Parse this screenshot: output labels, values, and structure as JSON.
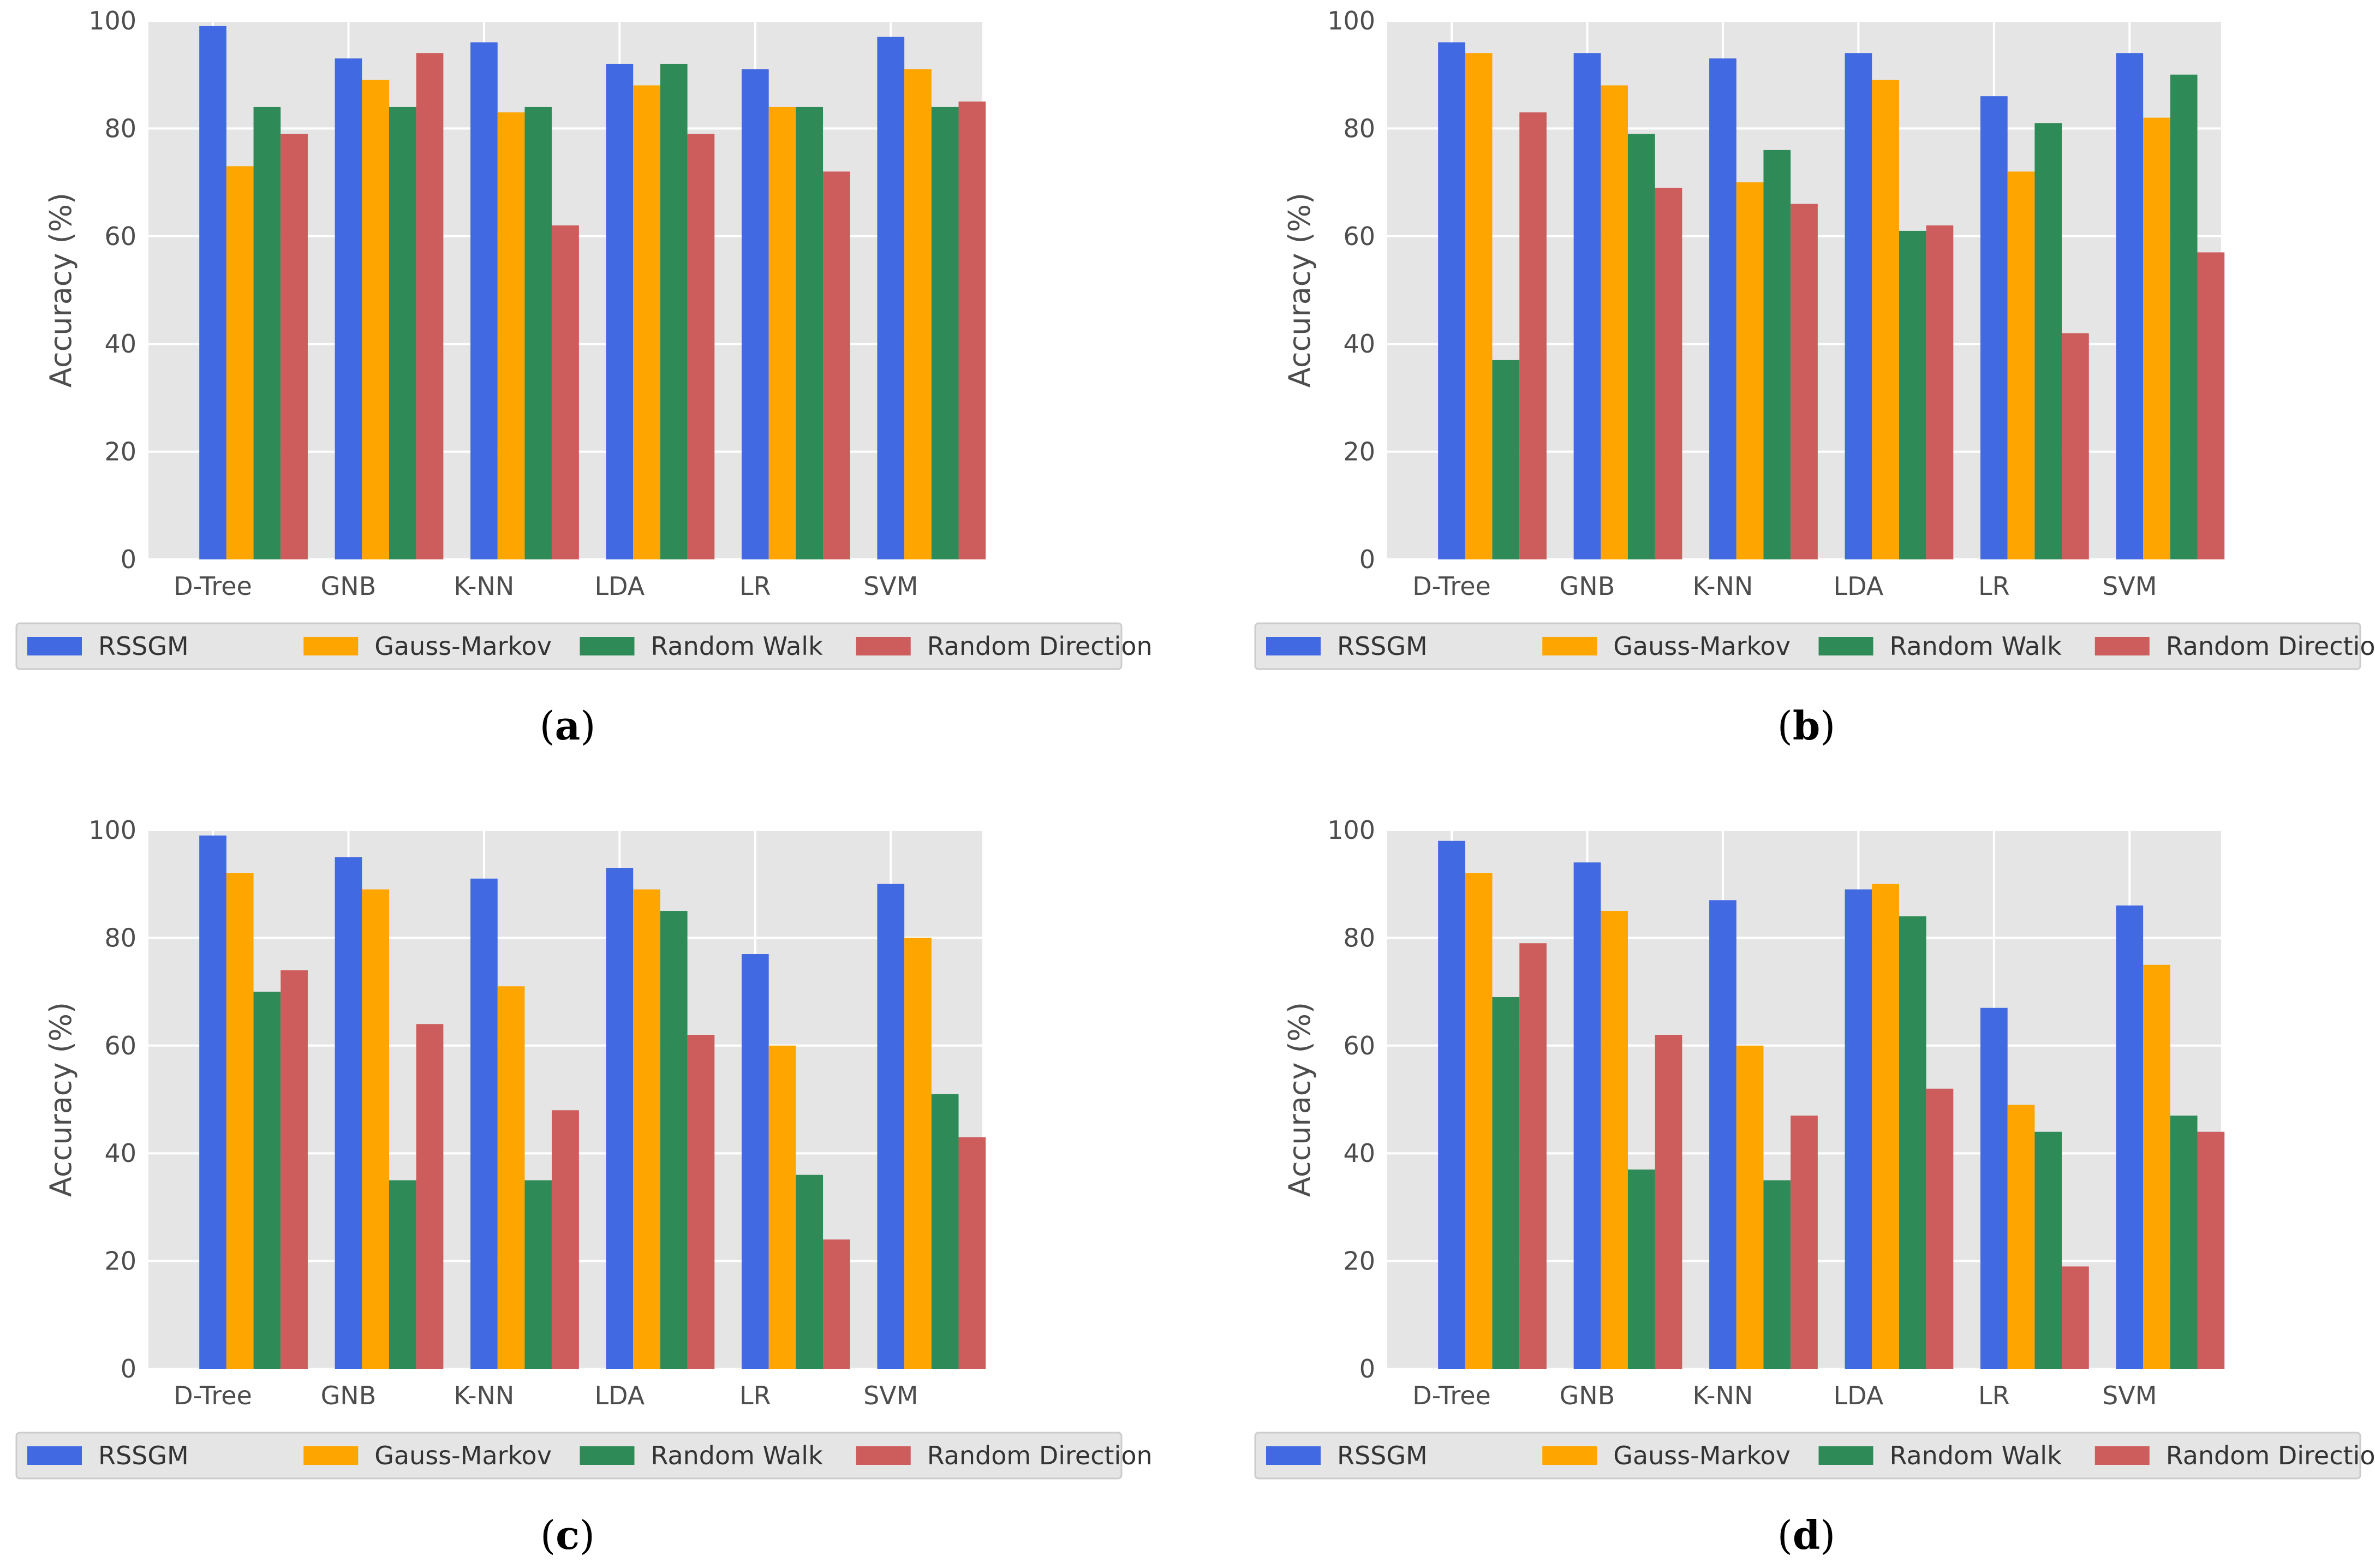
{
  "figure": {
    "y_axis_label": "Accuracy (%)",
    "colors": {
      "RSSGM": "#4169e1",
      "Gauss-Markov": "#ffa500",
      "Random Walk": "#2e8b57",
      "Random Direction": "#cd5c5c"
    }
  },
  "chart_data": [
    {
      "type": "bar",
      "caption": "a",
      "categories": [
        "D-Tree",
        "GNB",
        "K-NN",
        "LDA",
        "LR",
        "SVM"
      ],
      "series": [
        {
          "name": "RSSGM",
          "values": [
            99,
            93,
            96,
            92,
            91,
            97
          ]
        },
        {
          "name": "Gauss-Markov",
          "values": [
            73,
            89,
            83,
            88,
            84,
            91
          ]
        },
        {
          "name": "Random Walk",
          "values": [
            84,
            84,
            84,
            92,
            84,
            84
          ]
        },
        {
          "name": "Random Direction",
          "values": [
            79,
            94,
            62,
            79,
            72,
            85
          ]
        }
      ],
      "ylabel": "Accuracy (%)",
      "xlabel": "",
      "ylim": [
        0,
        100
      ],
      "yticks": [
        0,
        20,
        40,
        60,
        80,
        100
      ],
      "grid": true,
      "legend_position": "bottom"
    },
    {
      "type": "bar",
      "caption": "b",
      "categories": [
        "D-Tree",
        "GNB",
        "K-NN",
        "LDA",
        "LR",
        "SVM"
      ],
      "series": [
        {
          "name": "RSSGM",
          "values": [
            96,
            94,
            93,
            94,
            86,
            94
          ]
        },
        {
          "name": "Gauss-Markov",
          "values": [
            94,
            88,
            70,
            89,
            72,
            82
          ]
        },
        {
          "name": "Random Walk",
          "values": [
            37,
            79,
            76,
            61,
            81,
            90
          ]
        },
        {
          "name": "Random Direction",
          "values": [
            83,
            69,
            66,
            62,
            42,
            57
          ]
        }
      ],
      "ylabel": "Accuracy (%)",
      "xlabel": "",
      "ylim": [
        0,
        100
      ],
      "yticks": [
        0,
        20,
        40,
        60,
        80,
        100
      ],
      "grid": true,
      "legend_position": "bottom"
    },
    {
      "type": "bar",
      "caption": "c",
      "categories": [
        "D-Tree",
        "GNB",
        "K-NN",
        "LDA",
        "LR",
        "SVM"
      ],
      "series": [
        {
          "name": "RSSGM",
          "values": [
            99,
            95,
            91,
            93,
            77,
            90
          ]
        },
        {
          "name": "Gauss-Markov",
          "values": [
            92,
            89,
            71,
            89,
            60,
            80
          ]
        },
        {
          "name": "Random Walk",
          "values": [
            70,
            35,
            35,
            85,
            36,
            51
          ]
        },
        {
          "name": "Random Direction",
          "values": [
            74,
            64,
            48,
            62,
            24,
            43
          ]
        }
      ],
      "ylabel": "Accuracy (%)",
      "xlabel": "",
      "ylim": [
        0,
        100
      ],
      "yticks": [
        0,
        20,
        40,
        60,
        80,
        100
      ],
      "grid": true,
      "legend_position": "bottom"
    },
    {
      "type": "bar",
      "caption": "d",
      "categories": [
        "D-Tree",
        "GNB",
        "K-NN",
        "LDA",
        "LR",
        "SVM"
      ],
      "series": [
        {
          "name": "RSSGM",
          "values": [
            98,
            94,
            87,
            89,
            67,
            86
          ]
        },
        {
          "name": "Gauss-Markov",
          "values": [
            92,
            85,
            60,
            90,
            49,
            75
          ]
        },
        {
          "name": "Random Walk",
          "values": [
            69,
            37,
            35,
            84,
            44,
            47
          ]
        },
        {
          "name": "Random Direction",
          "values": [
            79,
            62,
            47,
            52,
            19,
            44
          ]
        }
      ],
      "ylabel": "Accuracy (%)",
      "xlabel": "",
      "ylim": [
        0,
        100
      ],
      "yticks": [
        0,
        20,
        40,
        60,
        80,
        100
      ],
      "grid": true,
      "legend_position": "bottom"
    }
  ]
}
